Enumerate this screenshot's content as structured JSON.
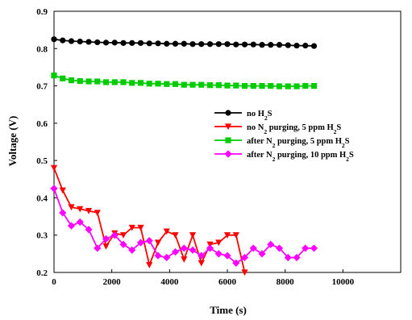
{
  "chart_data": {
    "type": "line",
    "xlabel": "Time (s)",
    "ylabel": "Voltage (V)",
    "xlim": [
      0,
      12000
    ],
    "ylim": [
      0.2,
      0.9
    ],
    "x_ticks": [
      "0",
      "2000",
      "4000",
      "6000",
      "8000",
      "10000"
    ],
    "y_ticks": [
      "0.2",
      "0.3",
      "0.4",
      "0.5",
      "0.6",
      "0.7",
      "0.8",
      "0.9"
    ],
    "legend_position": "right",
    "series": [
      {
        "name": "no H2S",
        "color": "#000000",
        "marker": "circle",
        "x": [
          0,
          300,
          600,
          900,
          1200,
          1500,
          1800,
          2100,
          2400,
          2700,
          3000,
          3300,
          3600,
          3900,
          4200,
          4500,
          4800,
          5100,
          5400,
          5700,
          6000,
          6300,
          6600,
          6900,
          7200,
          7500,
          7800,
          8100,
          8400,
          8700,
          9000
        ],
        "y": [
          0.825,
          0.822,
          0.82,
          0.819,
          0.818,
          0.817,
          0.816,
          0.816,
          0.815,
          0.815,
          0.815,
          0.814,
          0.814,
          0.813,
          0.813,
          0.813,
          0.812,
          0.812,
          0.812,
          0.812,
          0.812,
          0.811,
          0.811,
          0.811,
          0.81,
          0.81,
          0.81,
          0.809,
          0.808,
          0.808,
          0.807
        ]
      },
      {
        "name": "no N2 purging, 5 ppm H2S",
        "color": "#ff0000",
        "marker": "triangle-down",
        "x": [
          0,
          300,
          600,
          900,
          1200,
          1500,
          1800,
          2100,
          2400,
          2700,
          3000,
          3300,
          3600,
          3900,
          4200,
          4500,
          4800,
          5100,
          5400,
          5700,
          6000,
          6300,
          6600
        ],
        "y": [
          0.48,
          0.42,
          0.375,
          0.37,
          0.365,
          0.36,
          0.27,
          0.305,
          0.3,
          0.32,
          0.32,
          0.22,
          0.28,
          0.31,
          0.3,
          0.235,
          0.3,
          0.225,
          0.275,
          0.28,
          0.3,
          0.3,
          0.2
        ]
      },
      {
        "name": "after N2 purging, 5 ppm H2S",
        "color": "#00cc00",
        "marker": "square",
        "x": [
          0,
          300,
          600,
          900,
          1200,
          1500,
          1800,
          2100,
          2400,
          2700,
          3000,
          3300,
          3600,
          3900,
          4200,
          4500,
          4800,
          5100,
          5400,
          5700,
          6000,
          6300,
          6600,
          6900,
          7200,
          7500,
          7800,
          8100,
          8400,
          8700,
          9000
        ],
        "y": [
          0.728,
          0.72,
          0.715,
          0.713,
          0.712,
          0.712,
          0.71,
          0.71,
          0.71,
          0.708,
          0.708,
          0.706,
          0.706,
          0.705,
          0.705,
          0.703,
          0.703,
          0.703,
          0.702,
          0.702,
          0.701,
          0.701,
          0.7,
          0.7,
          0.7,
          0.7,
          0.699,
          0.699,
          0.699,
          0.7,
          0.7
        ]
      },
      {
        "name": "after N2 purging, 10 ppm H2S",
        "color": "#ff00ff",
        "marker": "diamond",
        "x": [
          0,
          300,
          600,
          900,
          1200,
          1500,
          1800,
          2100,
          2400,
          2700,
          3000,
          3300,
          3600,
          3900,
          4200,
          4500,
          4800,
          5100,
          5400,
          5700,
          6000,
          6300,
          6600,
          6900,
          7200,
          7500,
          7800,
          8100,
          8400,
          8700,
          9000
        ],
        "y": [
          0.425,
          0.36,
          0.325,
          0.335,
          0.315,
          0.265,
          0.29,
          0.3,
          0.275,
          0.26,
          0.28,
          0.285,
          0.245,
          0.24,
          0.255,
          0.265,
          0.26,
          0.245,
          0.265,
          0.25,
          0.245,
          0.225,
          0.24,
          0.265,
          0.25,
          0.275,
          0.265,
          0.24,
          0.24,
          0.265,
          0.265
        ]
      }
    ],
    "legend": [
      {
        "base": "no H",
        "sub": "2",
        "tail": "S"
      },
      {
        "base": "no N",
        "sub": "2",
        "tail": " purging, 5 ppm H",
        "sub2": "2",
        "tail2": "S"
      },
      {
        "base": "after N",
        "sub": "2",
        "tail": " purging, 5 ppm H",
        "sub2": "2",
        "tail2": "S"
      },
      {
        "base": "after N",
        "sub": "2",
        "tail": " purging, 10 ppm H",
        "sub2": "2",
        "tail2": "S"
      }
    ]
  }
}
